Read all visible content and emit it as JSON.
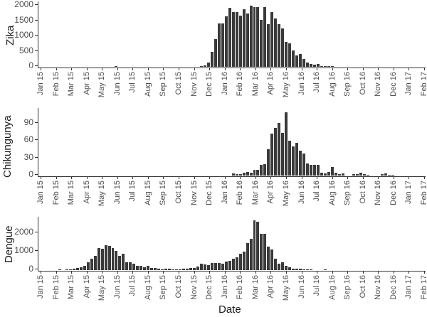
{
  "chart_data": [
    {
      "type": "bar",
      "title": "",
      "ylabel": "Zika",
      "xlabel": "",
      "ylim": [
        0,
        2100
      ],
      "yticks": [
        0,
        500,
        1000,
        1500,
        2000
      ],
      "xticks": [
        "Jan 15",
        "Feb 15",
        "Mar 15",
        "Apr 15",
        "May 15",
        "Jun 15",
        "Jul 15",
        "Aug 15",
        "Sep 15",
        "Oct 15",
        "Nov 15",
        "Dec 15",
        "Jan 16",
        "Feb 16",
        "Mar 16",
        "Apr 16",
        "May 16",
        "Jun 16",
        "Jul 16",
        "Aug 16",
        "Sep 16",
        "Oct 16",
        "Nov 16",
        "Dec 16",
        "Jan 17",
        "Feb 17"
      ],
      "bar_start_week": 21,
      "values": [
        20,
        0,
        0,
        0,
        0,
        0,
        0,
        0,
        0,
        0,
        0,
        0,
        0,
        0,
        0,
        0,
        0,
        0,
        0,
        0,
        0,
        0,
        0,
        0,
        20,
        50,
        150,
        490,
        900,
        1420,
        1420,
        1650,
        1930,
        1790,
        1800,
        1680,
        1890,
        1750,
        2000,
        1960,
        1970,
        1530,
        1960,
        1390,
        1800,
        1580,
        1400,
        1250,
        810,
        760,
        530,
        370,
        420,
        250,
        150,
        100,
        80,
        90,
        20,
        20,
        20,
        20
      ],
      "grid": false
    },
    {
      "type": "bar",
      "title": "",
      "ylabel": "Chikungunya",
      "xlabel": "",
      "ylim": [
        0,
        115
      ],
      "yticks": [
        0,
        30,
        60,
        90
      ],
      "xticks": [
        "Jan 15",
        "Feb 15",
        "Mar 15",
        "Apr 15",
        "May 15",
        "Jun 15",
        "Jul 15",
        "Aug 15",
        "Sep 15",
        "Oct 15",
        "Nov 15",
        "Dec 15",
        "Jan 16",
        "Feb 16",
        "Mar 16",
        "Apr 16",
        "May 16",
        "Jun 16",
        "Jul 16",
        "Aug 16",
        "Sep 16",
        "Oct 16",
        "Nov 16",
        "Dec 16",
        "Jan 17",
        "Feb 17"
      ],
      "bar_start_week": 54,
      "values": [
        4,
        3,
        3,
        5,
        6,
        5,
        10,
        10,
        18,
        20,
        46,
        73,
        83,
        92,
        74,
        110,
        60,
        51,
        57,
        43,
        38,
        21,
        18,
        18,
        18,
        5,
        4,
        6,
        15,
        5,
        3,
        4,
        0,
        0,
        2,
        3,
        5,
        3,
        1,
        0,
        0,
        0,
        3,
        4,
        1,
        1
      ],
      "grid": false
    },
    {
      "type": "bar",
      "title": "",
      "ylabel": "Dengue",
      "xlabel": "Date",
      "ylim": [
        0,
        2800
      ],
      "yticks": [
        0,
        1000,
        2000
      ],
      "xticks": [
        "Jan 15",
        "Feb 15",
        "Mar 15",
        "Apr 15",
        "May 15",
        "Jun 15",
        "Jul 15",
        "Aug 15",
        "Sep 15",
        "Oct 15",
        "Nov 15",
        "Dec 15",
        "Jan 16",
        "Feb 16",
        "Mar 16",
        "Apr 16",
        "May 16",
        "Jun 16",
        "Jul 16",
        "Aug 16",
        "Sep 16",
        "Oct 16",
        "Nov 16",
        "Dec 16",
        "Jan 17",
        "Feb 17"
      ],
      "bar_start_week": 5,
      "values": [
        30,
        0,
        20,
        40,
        80,
        120,
        150,
        220,
        430,
        630,
        770,
        1200,
        1150,
        1350,
        1320,
        1200,
        1050,
        750,
        880,
        440,
        410,
        330,
        240,
        240,
        160,
        240,
        120,
        120,
        80,
        50,
        60,
        80,
        50,
        40,
        40,
        70,
        70,
        110,
        110,
        200,
        350,
        290,
        250,
        400,
        400,
        400,
        350,
        450,
        500,
        620,
        700,
        900,
        1000,
        1450,
        1700,
        2700,
        2600,
        1950,
        1950,
        1270,
        1130,
        600,
        330,
        440,
        240,
        140,
        80,
        80,
        80,
        40,
        40,
        20,
        0,
        0,
        0,
        20
      ],
      "grid": false
    }
  ],
  "panels": [
    {
      "ylabel": "Zika",
      "yticks": [
        "0",
        "500",
        "1000",
        "1500",
        "2000"
      ]
    },
    {
      "ylabel": "Chikungunya",
      "yticks": [
        "0",
        "30",
        "60",
        "90"
      ]
    },
    {
      "ylabel": "Dengue",
      "yticks": [
        "0",
        "1000",
        "2000"
      ]
    }
  ],
  "xlabel": "Date",
  "months": [
    "Jan 15",
    "Feb 15",
    "Mar 15",
    "Apr 15",
    "May 15",
    "Jun 15",
    "Jul 15",
    "Aug 15",
    "Sep 15",
    "Oct 15",
    "Nov 15",
    "Dec 15",
    "Jan 16",
    "Feb 16",
    "Mar 16",
    "Apr 16",
    "May 16",
    "Jun 16",
    "Jul 16",
    "Aug 16",
    "Sep 16",
    "Oct 16",
    "Nov 16",
    "Dec 16",
    "Jan 17",
    "Feb 17"
  ],
  "colors": {
    "bar": "#3a3a3a",
    "axis": "#333333",
    "text": "#4d4d4d"
  }
}
